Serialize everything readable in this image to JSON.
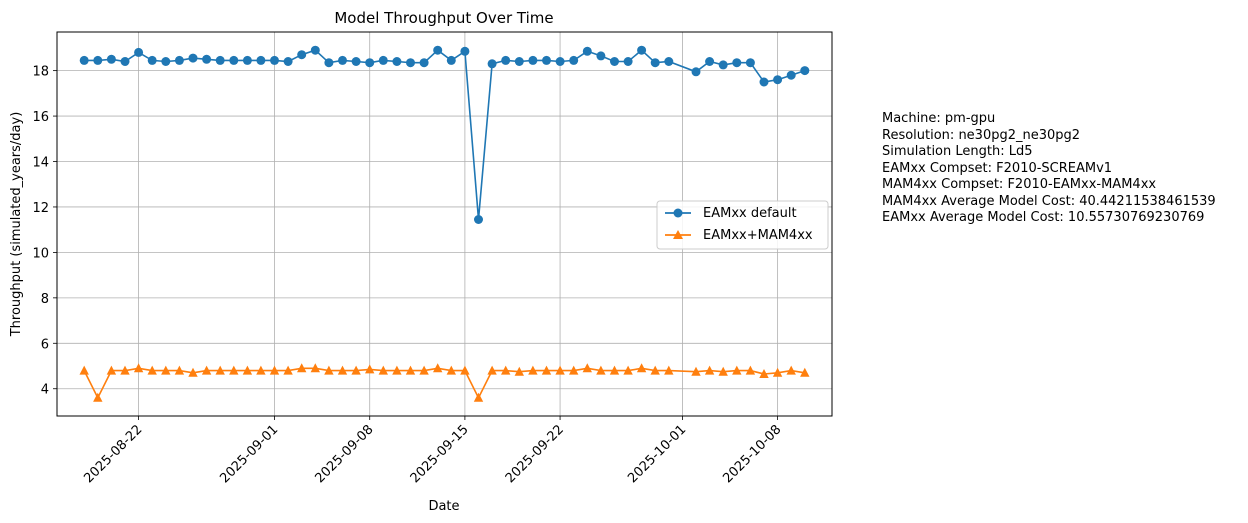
{
  "chart_data": {
    "type": "line",
    "title": "Model Throughput Over Time",
    "xlabel": "Date",
    "ylabel": "Throughput (simulated_years/day)",
    "x_ticks": [
      "2025-08-22",
      "2025-09-01",
      "2025-09-08",
      "2025-09-15",
      "2025-09-22",
      "2025-10-01",
      "2025-10-08"
    ],
    "y_ticks": [
      4,
      6,
      8,
      10,
      12,
      14,
      16,
      18
    ],
    "ylim": [
      2.8,
      19.7
    ],
    "xlim": [
      "2025-08-16",
      "2025-10-12"
    ],
    "grid": true,
    "legend_position": "center-right",
    "series": [
      {
        "name": "EAMxx default",
        "color": "#1f77b4",
        "marker": "circle",
        "points": [
          [
            "2025-08-18",
            18.45
          ],
          [
            "2025-08-19",
            18.45
          ],
          [
            "2025-08-20",
            18.5
          ],
          [
            "2025-08-21",
            18.4
          ],
          [
            "2025-08-22",
            18.8
          ],
          [
            "2025-08-23",
            18.45
          ],
          [
            "2025-08-24",
            18.4
          ],
          [
            "2025-08-25",
            18.45
          ],
          [
            "2025-08-26",
            18.55
          ],
          [
            "2025-08-27",
            18.5
          ],
          [
            "2025-08-28",
            18.45
          ],
          [
            "2025-08-29",
            18.45
          ],
          [
            "2025-08-30",
            18.45
          ],
          [
            "2025-08-31",
            18.45
          ],
          [
            "2025-09-01",
            18.45
          ],
          [
            "2025-09-02",
            18.4
          ],
          [
            "2025-09-03",
            18.7
          ],
          [
            "2025-09-04",
            18.9
          ],
          [
            "2025-09-05",
            18.35
          ],
          [
            "2025-09-06",
            18.45
          ],
          [
            "2025-09-07",
            18.4
          ],
          [
            "2025-09-08",
            18.35
          ],
          [
            "2025-09-09",
            18.45
          ],
          [
            "2025-09-10",
            18.4
          ],
          [
            "2025-09-11",
            18.35
          ],
          [
            "2025-09-12",
            18.35
          ],
          [
            "2025-09-13",
            18.9
          ],
          [
            "2025-09-14",
            18.45
          ],
          [
            "2025-09-15",
            18.85
          ],
          [
            "2025-09-16",
            11.45
          ],
          [
            "2025-09-17",
            18.3
          ],
          [
            "2025-09-18",
            18.45
          ],
          [
            "2025-09-19",
            18.4
          ],
          [
            "2025-09-20",
            18.45
          ],
          [
            "2025-09-21",
            18.45
          ],
          [
            "2025-09-22",
            18.4
          ],
          [
            "2025-09-23",
            18.45
          ],
          [
            "2025-09-24",
            18.85
          ],
          [
            "2025-09-25",
            18.65
          ],
          [
            "2025-09-26",
            18.4
          ],
          [
            "2025-09-27",
            18.4
          ],
          [
            "2025-09-28",
            18.9
          ],
          [
            "2025-09-29",
            18.35
          ],
          [
            "2025-09-30",
            18.4
          ],
          [
            "2025-10-02",
            17.95
          ],
          [
            "2025-10-03",
            18.4
          ],
          [
            "2025-10-04",
            18.25
          ],
          [
            "2025-10-05",
            18.35
          ],
          [
            "2025-10-06",
            18.35
          ],
          [
            "2025-10-07",
            17.5
          ],
          [
            "2025-10-08",
            17.6
          ],
          [
            "2025-10-09",
            17.8
          ],
          [
            "2025-10-10",
            18.0
          ]
        ]
      },
      {
        "name": "EAMxx+MAM4xx",
        "color": "#ff7f0e",
        "marker": "triangle",
        "points": [
          [
            "2025-08-18",
            4.8
          ],
          [
            "2025-08-19",
            3.6
          ],
          [
            "2025-08-20",
            4.8
          ],
          [
            "2025-08-21",
            4.8
          ],
          [
            "2025-08-22",
            4.9
          ],
          [
            "2025-08-23",
            4.8
          ],
          [
            "2025-08-24",
            4.8
          ],
          [
            "2025-08-25",
            4.8
          ],
          [
            "2025-08-26",
            4.7
          ],
          [
            "2025-08-27",
            4.8
          ],
          [
            "2025-08-28",
            4.8
          ],
          [
            "2025-08-29",
            4.8
          ],
          [
            "2025-08-30",
            4.8
          ],
          [
            "2025-08-31",
            4.8
          ],
          [
            "2025-09-01",
            4.8
          ],
          [
            "2025-09-02",
            4.8
          ],
          [
            "2025-09-03",
            4.9
          ],
          [
            "2025-09-04",
            4.9
          ],
          [
            "2025-09-05",
            4.8
          ],
          [
            "2025-09-06",
            4.8
          ],
          [
            "2025-09-07",
            4.8
          ],
          [
            "2025-09-08",
            4.85
          ],
          [
            "2025-09-09",
            4.8
          ],
          [
            "2025-09-10",
            4.8
          ],
          [
            "2025-09-11",
            4.8
          ],
          [
            "2025-09-12",
            4.8
          ],
          [
            "2025-09-13",
            4.9
          ],
          [
            "2025-09-14",
            4.8
          ],
          [
            "2025-09-15",
            4.8
          ],
          [
            "2025-09-16",
            3.6
          ],
          [
            "2025-09-17",
            4.8
          ],
          [
            "2025-09-18",
            4.8
          ],
          [
            "2025-09-19",
            4.75
          ],
          [
            "2025-09-20",
            4.8
          ],
          [
            "2025-09-21",
            4.8
          ],
          [
            "2025-09-22",
            4.8
          ],
          [
            "2025-09-23",
            4.8
          ],
          [
            "2025-09-24",
            4.9
          ],
          [
            "2025-09-25",
            4.8
          ],
          [
            "2025-09-26",
            4.8
          ],
          [
            "2025-09-27",
            4.8
          ],
          [
            "2025-09-28",
            4.9
          ],
          [
            "2025-09-29",
            4.8
          ],
          [
            "2025-09-30",
            4.8
          ],
          [
            "2025-10-02",
            4.75
          ],
          [
            "2025-10-03",
            4.8
          ],
          [
            "2025-10-04",
            4.75
          ],
          [
            "2025-10-05",
            4.8
          ],
          [
            "2025-10-06",
            4.8
          ],
          [
            "2025-10-07",
            4.65
          ],
          [
            "2025-10-08",
            4.7
          ],
          [
            "2025-10-09",
            4.8
          ],
          [
            "2025-10-10",
            4.7
          ]
        ]
      }
    ]
  },
  "info_lines": [
    "Machine: pm-gpu",
    "Resolution: ne30pg2_ne30pg2",
    "Simulation Length: Ld5",
    "EAMxx Compset: F2010-SCREAMv1",
    "MAM4xx Compset: F2010-EAMxx-MAM4xx",
    "MAM4xx Average Model Cost: 40.44211538461539",
    "EAMxx Average Model Cost: 10.55730769230769"
  ]
}
